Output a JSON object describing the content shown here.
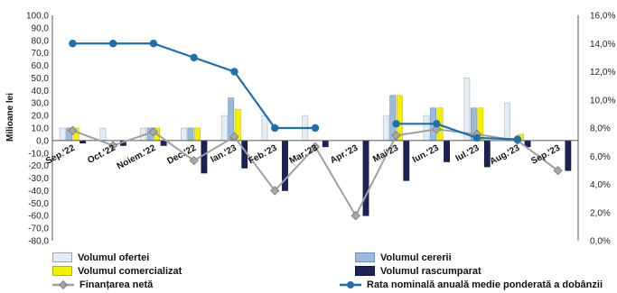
{
  "chart_data": {
    "type": "bar",
    "categories": [
      "Sep.'22",
      "Oct.'22",
      "Noiem.'22",
      "Dec.'22",
      "Ian.'23",
      "Feb.'23",
      "Mar.'23",
      "Apr.'23",
      "Mai'23",
      "Iun.'23",
      "Iul.'23",
      "Aug.'23",
      "Sep.'23"
    ],
    "ylabel": "Milioane lei",
    "ylim": [
      -80,
      100
    ],
    "y_ticks": [
      "100,0",
      "90,0",
      "80,0",
      "70,0",
      "60,0",
      "50,0",
      "40,0",
      "30,0",
      "20,0",
      "10,0",
      "0,0",
      "-10,0",
      "-20,0",
      "-30,0",
      "-40,0",
      "-50,0",
      "-60,0",
      "-70,0",
      "-80,0"
    ],
    "y2lim": [
      0,
      16
    ],
    "y2_ticks": [
      "16,0%",
      "14,0%",
      "12,0%",
      "10,0%",
      "8,0%",
      "6,0%",
      "4,0%",
      "2,0%",
      "0,0%"
    ],
    "grid": false,
    "legend_position": "bottom",
    "series": [
      {
        "name": "Volumul ofertei",
        "type": "bar",
        "axis": "left",
        "color": "#e4ecf4",
        "values": [
          10,
          10,
          10,
          10,
          20,
          20,
          20,
          0,
          20,
          20,
          50,
          30,
          0
        ]
      },
      {
        "name": "Volumul cererii",
        "type": "bar",
        "axis": "left",
        "color": "#9cbadb",
        "values": [
          10,
          0,
          10,
          10,
          34,
          0,
          0,
          0,
          36,
          26,
          26,
          0,
          0
        ]
      },
      {
        "name": "Volumul comercializat",
        "type": "bar",
        "axis": "left",
        "color": "#f4f000",
        "values": [
          10,
          0,
          10,
          10,
          25,
          0,
          0,
          0,
          36,
          26,
          26,
          5,
          0
        ]
      },
      {
        "name": "Volumul rascumparat",
        "type": "bar",
        "axis": "left",
        "color": "#1a2258",
        "values": [
          -2,
          -4,
          -4,
          -26,
          -22,
          -40,
          -5,
          -60,
          -32,
          -17,
          -21,
          -5,
          -24
        ]
      },
      {
        "name": "Finanțarea netă",
        "type": "line",
        "axis": "left",
        "color": "#a0a0a0",
        "values": [
          8,
          -4,
          7,
          -16,
          3,
          -40,
          -5,
          -60,
          4,
          9,
          5,
          0,
          -24
        ]
      },
      {
        "name": "Rata nominală anuală medie ponderată a dobânzii",
        "type": "line",
        "axis": "right",
        "color": "#1e6fae",
        "values": [
          14.0,
          14.0,
          14.0,
          13.0,
          12.0,
          8.0,
          8.0,
          null,
          8.3,
          8.3,
          7.3,
          7.2,
          null
        ]
      }
    ]
  }
}
